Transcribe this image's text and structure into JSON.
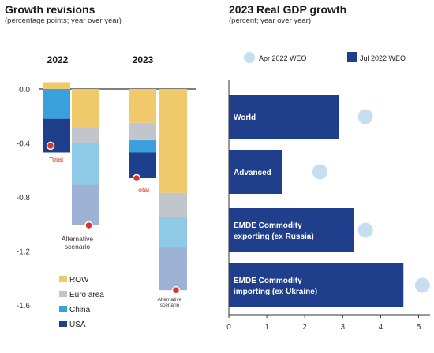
{
  "left_panel": {
    "title": "Growth revisions",
    "subtitle": "(percentage points; year over year)"
  },
  "right_panel": {
    "title": "2023 Real GDP growth",
    "subtitle": "(percent; year over year)"
  },
  "colors": {
    "row": "#f0c96b",
    "euro_area": "#c2c6cc",
    "china": "#8ec9e8",
    "usa": "#1f3f8c",
    "china_bright": "#3aa0dc",
    "alt_mid": "#9db2d4",
    "total_dot": "#d6372b",
    "apr_dot": "#c5dff0",
    "jul_bar": "#1f3f8c"
  },
  "chart_data": [
    {
      "type": "bar",
      "stacked": true,
      "title": "Growth revisions",
      "subtitle": "(percentage points; year over year)",
      "groups": [
        "2022",
        "2023"
      ],
      "yticks": [
        0.0,
        -0.4,
        -0.8,
        -1.2,
        -1.6
      ],
      "ytick_labels": [
        "0.0",
        "-0.4",
        "-0.8",
        "-1.2",
        "-1.6"
      ],
      "ylim": [
        -1.6,
        0.05
      ],
      "legend": [
        "ROW",
        "Euro area",
        "China",
        "USA"
      ],
      "legend_placement": "bottom-left",
      "bars": [
        {
          "group": "2022",
          "kind": "total",
          "segments": [
            {
              "series": "ROW",
              "from": 0.0,
              "to": 0.05
            },
            {
              "series": "China",
              "from": 0.0,
              "to": -0.22
            },
            {
              "series": "USA",
              "from": -0.22,
              "to": -0.47
            }
          ],
          "marker": -0.42,
          "label": "Total"
        },
        {
          "group": "2022",
          "kind": "alternative",
          "segments": [
            {
              "series": "ROW",
              "from": 0.0,
              "to": -0.29
            },
            {
              "series": "Euro area",
              "from": -0.29,
              "to": -0.4
            },
            {
              "series": "China",
              "from": -0.4,
              "to": -0.71
            },
            {
              "series": "Alternative",
              "from": -0.71,
              "to": -1.01
            }
          ],
          "marker": -1.01,
          "label": "Alternative scenario"
        },
        {
          "group": "2023",
          "kind": "total",
          "segments": [
            {
              "series": "ROW",
              "from": 0.0,
              "to": -0.25
            },
            {
              "series": "Euro area",
              "from": -0.25,
              "to": -0.38
            },
            {
              "series": "China",
              "from": -0.38,
              "to": -0.47
            },
            {
              "series": "USA",
              "from": -0.47,
              "to": -0.66
            }
          ],
          "marker": -0.66,
          "label": "Total"
        },
        {
          "group": "2023",
          "kind": "alternative",
          "segments": [
            {
              "series": "ROW",
              "from": 0.0,
              "to": -0.77
            },
            {
              "series": "Euro area",
              "from": -0.77,
              "to": -0.95
            },
            {
              "series": "China",
              "from": -0.95,
              "to": -1.17
            },
            {
              "series": "Alternative",
              "from": -1.17,
              "to": -1.49
            }
          ],
          "marker": -1.49,
          "label": "Alternative scenario"
        }
      ]
    },
    {
      "type": "bar",
      "orientation": "horizontal",
      "title": "2023 Real GDP growth",
      "subtitle": "(percent; year over year)",
      "categories": [
        "World",
        "Advanced",
        "EMDE Commodity exporting (ex Russia)",
        "EMDE Commodity importing (ex Ukraine)"
      ],
      "category_lines": [
        [
          "World"
        ],
        [
          "Advanced"
        ],
        [
          "EMDE Commodity",
          "exporting (ex Russia)"
        ],
        [
          "EMDE Commodity",
          "importing (ex Ukraine)"
        ]
      ],
      "series": [
        {
          "name": "Apr 2022 WEO",
          "style": "dot",
          "values": [
            3.6,
            2.4,
            3.6,
            5.1
          ]
        },
        {
          "name": "Jul 2022 WEO",
          "style": "bar",
          "values": [
            2.9,
            1.4,
            3.3,
            4.6
          ]
        }
      ],
      "xlim": [
        0,
        5.3
      ],
      "xticks": [
        0,
        1,
        2,
        3,
        4,
        5
      ],
      "legend_placement": "top"
    }
  ]
}
